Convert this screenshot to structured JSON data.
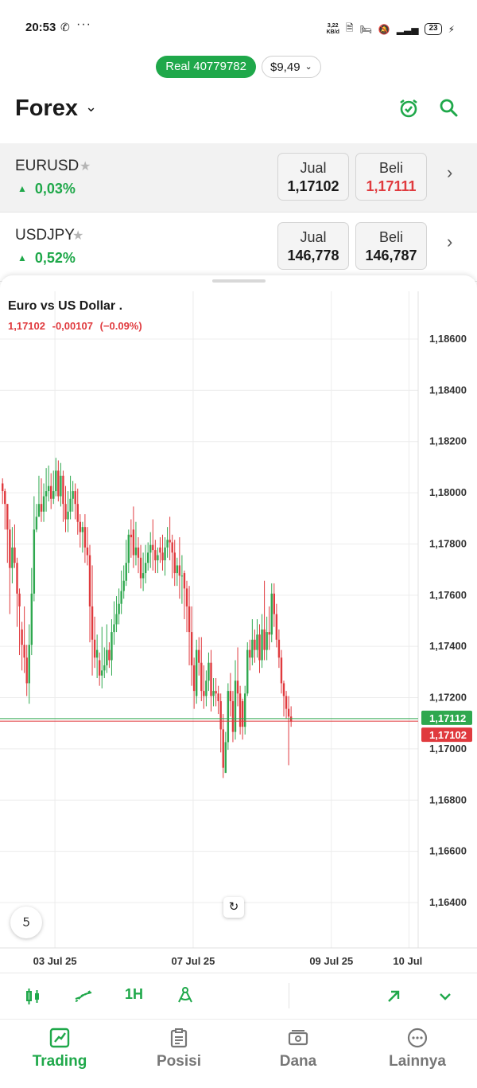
{
  "status_bar": {
    "time": "20:53",
    "speed_value": "3,22",
    "speed_unit": "KB/d",
    "battery": "23"
  },
  "account": {
    "label": "Real 40779782",
    "balance": "$9,49"
  },
  "header": {
    "title": "Forex"
  },
  "instruments": [
    {
      "symbol": "EURUSD",
      "change": "0,03%",
      "sell_label": "Jual",
      "sell": "1,17102",
      "buy_label": "Beli",
      "buy": "1,17111"
    },
    {
      "symbol": "USDJPY",
      "change": "0,52%",
      "sell_label": "Jual",
      "sell": "146,778",
      "buy_label": "Beli",
      "buy": "146,787"
    }
  ],
  "chart_header": {
    "title": "Euro vs US Dollar .",
    "last": "1,17102",
    "change": "-0,00107",
    "change_pct": "(−0.09%)"
  },
  "toolbar": {
    "timeframe": "1H"
  },
  "nav": {
    "items": [
      {
        "label": "Trading",
        "icon": "chart-line-icon",
        "active": true
      },
      {
        "label": "Posisi",
        "icon": "clipboard-icon",
        "active": false
      },
      {
        "label": "Dana",
        "icon": "cash-icon",
        "active": false
      },
      {
        "label": "Lainnya",
        "icon": "more-icon",
        "active": false
      }
    ]
  },
  "colors": {
    "accent_green": "#1fa84a",
    "candle_up": "#2fa84f",
    "candle_down": "#e03a3e",
    "price_red": "#e03a3e"
  },
  "chart_data": {
    "type": "candlestick",
    "symbol": "EURUSD",
    "timeframe": "1H",
    "ylim": [
      1.1635,
      1.1878
    ],
    "y_ticks": [
      "1,18600",
      "1,18400",
      "1,18200",
      "1,18000",
      "1,17800",
      "1,17600",
      "1,17400",
      "1,17200",
      "1,17000",
      "1,16800",
      "1,16600",
      "1,16400"
    ],
    "y_tick_values": [
      1.186,
      1.184,
      1.182,
      1.18,
      1.178,
      1.176,
      1.174,
      1.172,
      1.17,
      1.168,
      1.166,
      1.164
    ],
    "x_ticks": [
      "03 Jul 25",
      "07 Jul 25",
      "09 Jul 25",
      "10 Jul"
    ],
    "x_tick_positions_index": [
      22,
      79,
      136,
      168
    ],
    "ask_label": "1,17112",
    "bid_label": "1,17102",
    "ask": 1.17112,
    "bid": 1.17102,
    "grid": true,
    "candles_close": [
      1.18,
      1.1795,
      1.1785,
      1.177,
      1.1778,
      1.1772,
      1.176,
      1.1755,
      1.174,
      1.1735,
      1.1725,
      1.174,
      1.176,
      1.1785,
      1.179,
      1.1795,
      1.1792,
      1.1798,
      1.18,
      1.1802,
      1.1797,
      1.18,
      1.1808,
      1.1798,
      1.1806,
      1.1795,
      1.1789,
      1.1792,
      1.1797,
      1.18,
      1.1795,
      1.1788,
      1.1784,
      1.1786,
      1.1778,
      1.1775,
      1.1755,
      1.1742,
      1.1735,
      1.1738,
      1.1728,
      1.173,
      1.1732,
      1.1738,
      1.1734,
      1.1745,
      1.1748,
      1.1752,
      1.1756,
      1.1761,
      1.1765,
      1.1772,
      1.1783,
      1.1782,
      1.1775,
      1.1778,
      1.1774,
      1.1766,
      1.1768,
      1.1772,
      1.1776,
      1.1779,
      1.1777,
      1.1773,
      1.1775,
      1.1776,
      1.1773,
      1.1778,
      1.1781,
      1.178,
      1.1776,
      1.1768,
      1.1771,
      1.1767,
      1.1767,
      1.1762,
      1.1755,
      1.1745,
      1.1732,
      1.1722,
      1.1738,
      1.1733,
      1.1722,
      1.172,
      1.1726,
      1.1733,
      1.172,
      1.1722,
      1.1721,
      1.1718,
      1.1707,
      1.1692,
      1.1702,
      1.1722,
      1.1718,
      1.1706,
      1.1726,
      1.1721,
      1.1708,
      1.1708,
      1.1721,
      1.1738,
      1.1735,
      1.1742,
      1.1738,
      1.1744,
      1.1734,
      1.1746,
      1.1738,
      1.1745,
      1.1744,
      1.176,
      1.1752,
      1.1742,
      1.1735,
      1.1725,
      1.172,
      1.1715,
      1.1712,
      1.171
    ],
    "candles_high": [
      1.1805,
      1.1801,
      1.1795,
      1.1789,
      1.1786,
      1.1787,
      1.1774,
      1.1762,
      1.1749,
      1.1755,
      1.174,
      1.1748,
      1.177,
      1.1798,
      1.1795,
      1.1806,
      1.1805,
      1.1803,
      1.1809,
      1.181,
      1.1807,
      1.1808,
      1.1813,
      1.1812,
      1.1811,
      1.1808,
      1.1802,
      1.18,
      1.1806,
      1.1804,
      1.1803,
      1.1801,
      1.1791,
      1.1788,
      1.1791,
      1.1786,
      1.1779,
      1.1771,
      1.1751,
      1.1744,
      1.1737,
      1.1747,
      1.1739,
      1.1748,
      1.1741,
      1.175,
      1.1757,
      1.1759,
      1.1762,
      1.1769,
      1.1771,
      1.1781,
      1.1785,
      1.1789,
      1.1794,
      1.1788,
      1.1782,
      1.1779,
      1.1776,
      1.1779,
      1.178,
      1.1784,
      1.1789,
      1.1781,
      1.1778,
      1.1782,
      1.1783,
      1.1782,
      1.1786,
      1.179,
      1.1783,
      1.1781,
      1.1774,
      1.1782,
      1.1775,
      1.1769,
      1.1765,
      1.1763,
      1.1755,
      1.1735,
      1.1742,
      1.1743,
      1.1743,
      1.1732,
      1.173,
      1.1737,
      1.1738,
      1.1727,
      1.1727,
      1.1724,
      1.1721,
      1.1713,
      1.1706,
      1.1725,
      1.1729,
      1.1722,
      1.1734,
      1.1739,
      1.1724,
      1.1719,
      1.1724,
      1.1741,
      1.1742,
      1.175,
      1.1746,
      1.175,
      1.1748,
      1.1752,
      1.1765,
      1.1751,
      1.1755,
      1.1764,
      1.1764,
      1.1756,
      1.1746,
      1.1738,
      1.1726,
      1.1722,
      1.172,
      1.1716
    ],
    "candles_low": [
      1.1795,
      1.1785,
      1.1772,
      1.1752,
      1.1764,
      1.177,
      1.1747,
      1.1736,
      1.173,
      1.1729,
      1.172,
      1.1717,
      1.1736,
      1.1757,
      1.1784,
      1.179,
      1.1788,
      1.1788,
      1.1792,
      1.1796,
      1.1793,
      1.1795,
      1.1798,
      1.1796,
      1.1794,
      1.1788,
      1.1784,
      1.1784,
      1.1789,
      1.1792,
      1.1789,
      1.1783,
      1.1778,
      1.1776,
      1.1772,
      1.1771,
      1.1741,
      1.1728,
      1.1731,
      1.1727,
      1.1724,
      1.1723,
      1.1727,
      1.1729,
      1.1731,
      1.1728,
      1.174,
      1.1745,
      1.1748,
      1.1752,
      1.1758,
      1.1763,
      1.1768,
      1.1774,
      1.177,
      1.1771,
      1.1768,
      1.1762,
      1.1761,
      1.1764,
      1.1769,
      1.177,
      1.1769,
      1.1768,
      1.1768,
      1.1772,
      1.1769,
      1.1767,
      1.1774,
      1.1773,
      1.1766,
      1.1763,
      1.1763,
      1.1758,
      1.1756,
      1.175,
      1.1745,
      1.1732,
      1.1724,
      1.1715,
      1.1717,
      1.1728,
      1.1718,
      1.1715,
      1.1716,
      1.1722,
      1.1714,
      1.1716,
      1.1716,
      1.1713,
      1.1698,
      1.1688,
      1.169,
      1.1699,
      1.1712,
      1.1702,
      1.1703,
      1.1716,
      1.1705,
      1.1703,
      1.1705,
      1.172,
      1.173,
      1.1732,
      1.1733,
      1.1735,
      1.1729,
      1.1731,
      1.1734,
      1.1734,
      1.1738,
      1.1741,
      1.1747,
      1.1739,
      1.1731,
      1.1721,
      1.1712,
      1.1711,
      1.1693,
      1.1708
    ],
    "candles_open": [
      1.1803,
      1.18,
      1.1795,
      1.1785,
      1.177,
      1.1778,
      1.1772,
      1.176,
      1.1746,
      1.174,
      1.1735,
      1.1725,
      1.174,
      1.176,
      1.1785,
      1.179,
      1.1795,
      1.1792,
      1.1798,
      1.18,
      1.1802,
      1.1797,
      1.18,
      1.1808,
      1.1798,
      1.1806,
      1.1795,
      1.1789,
      1.1792,
      1.1797,
      1.18,
      1.1795,
      1.1788,
      1.1784,
      1.1786,
      1.1778,
      1.1775,
      1.1755,
      1.1742,
      1.1735,
      1.1734,
      1.1728,
      1.173,
      1.1732,
      1.1738,
      1.1734,
      1.1745,
      1.1748,
      1.1752,
      1.1756,
      1.1761,
      1.1765,
      1.1772,
      1.1783,
      1.1785,
      1.1775,
      1.1778,
      1.1774,
      1.1766,
      1.1768,
      1.1772,
      1.1776,
      1.1779,
      1.1777,
      1.1773,
      1.1778,
      1.1776,
      1.1773,
      1.1778,
      1.1781,
      1.178,
      1.1776,
      1.1768,
      1.1771,
      1.1767,
      1.1768,
      1.1762,
      1.1755,
      1.1745,
      1.1732,
      1.172,
      1.1738,
      1.1733,
      1.1722,
      1.172,
      1.1726,
      1.1733,
      1.172,
      1.1722,
      1.1721,
      1.1718,
      1.1707,
      1.169,
      1.1702,
      1.1722,
      1.1718,
      1.1706,
      1.1726,
      1.1721,
      1.1718,
      1.1708,
      1.1721,
      1.1738,
      1.1735,
      1.1742,
      1.1738,
      1.1744,
      1.1734,
      1.1746,
      1.1738,
      1.1745,
      1.1744,
      1.176,
      1.1752,
      1.1742,
      1.1735,
      1.1725,
      1.172,
      1.1715,
      1.1712
    ]
  }
}
